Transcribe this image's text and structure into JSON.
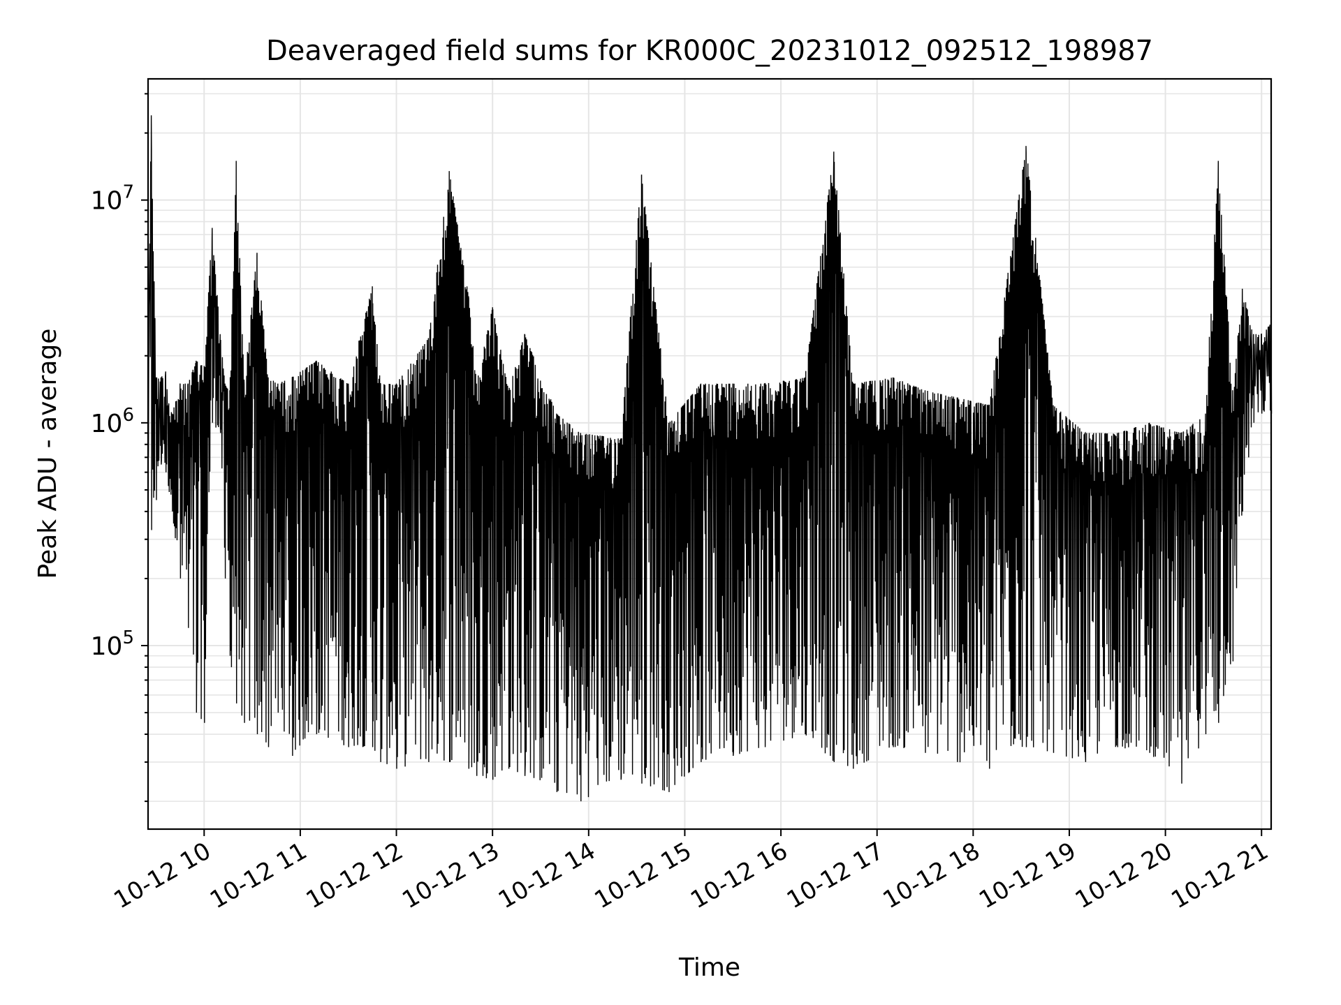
{
  "chart_data": {
    "type": "line",
    "title": "Deaveraged field sums for KR000C_20231012_092512_198987",
    "xlabel": "Time",
    "ylabel": "Peak ADU - average",
    "yscale": "log",
    "ylim": [
      15000,
      35000000
    ],
    "xlim": [
      "2023-10-12 09:25",
      "2023-10-12 21:06"
    ],
    "grid": true,
    "legend": "none",
    "line_color": "#000000",
    "x_ticks": [
      {
        "t": "2023-10-12 10:00",
        "label": "10-12 10"
      },
      {
        "t": "2023-10-12 11:00",
        "label": "10-12 11"
      },
      {
        "t": "2023-10-12 12:00",
        "label": "10-12 12"
      },
      {
        "t": "2023-10-12 13:00",
        "label": "10-12 13"
      },
      {
        "t": "2023-10-12 14:00",
        "label": "10-12 14"
      },
      {
        "t": "2023-10-12 15:00",
        "label": "10-12 15"
      },
      {
        "t": "2023-10-12 16:00",
        "label": "10-12 16"
      },
      {
        "t": "2023-10-12 17:00",
        "label": "10-12 17"
      },
      {
        "t": "2023-10-12 18:00",
        "label": "10-12 18"
      },
      {
        "t": "2023-10-12 19:00",
        "label": "10-12 19"
      },
      {
        "t": "2023-10-12 20:00",
        "label": "10-12 20"
      },
      {
        "t": "2023-10-12 21:00",
        "label": "10-12 21"
      }
    ],
    "y_ticks": [
      {
        "value": 100000,
        "base": "10",
        "exp": "5"
      },
      {
        "value": 1000000,
        "base": "10",
        "exp": "6"
      },
      {
        "value": 10000000,
        "base": "10",
        "exp": "7"
      }
    ],
    "series": [
      {
        "x": [
          "2023-10-12 09:25",
          "2023-10-12 09:27",
          "2023-10-12 09:30",
          "2023-10-12 09:33",
          "2023-10-12 09:36",
          "2023-10-12 09:40",
          "2023-10-12 09:45",
          "2023-10-12 09:50",
          "2023-10-12 09:55",
          "2023-10-12 10:00",
          "2023-10-12 10:05",
          "2023-10-12 10:10",
          "2023-10-12 10:13",
          "2023-10-12 10:16",
          "2023-10-12 10:20",
          "2023-10-12 10:25",
          "2023-10-12 10:33",
          "2023-10-12 10:40",
          "2023-10-12 10:46",
          "2023-10-12 10:55",
          "2023-10-12 11:10",
          "2023-10-12 11:30",
          "2023-10-12 11:45",
          "2023-10-12 11:50",
          "2023-10-12 12:00",
          "2023-10-12 12:20",
          "2023-10-12 12:33",
          "2023-10-12 12:45",
          "2023-10-12 12:50",
          "2023-10-12 13:00",
          "2023-10-12 13:10",
          "2023-10-12 13:20",
          "2023-10-12 13:40",
          "2023-10-12 13:55",
          "2023-10-12 14:20",
          "2023-10-12 14:33",
          "2023-10-12 14:50",
          "2023-10-12 15:10",
          "2023-10-12 15:30",
          "2023-10-12 15:50",
          "2023-10-12 16:15",
          "2023-10-12 16:33",
          "2023-10-12 16:45",
          "2023-10-12 17:10",
          "2023-10-12 17:30",
          "2023-10-12 17:50",
          "2023-10-12 18:10",
          "2023-10-12 18:33",
          "2023-10-12 18:50",
          "2023-10-12 19:10",
          "2023-10-12 19:30",
          "2023-10-12 19:50",
          "2023-10-12 20:10",
          "2023-10-12 20:25",
          "2023-10-12 20:33",
          "2023-10-12 20:42",
          "2023-10-12 20:48",
          "2023-10-12 20:55",
          "2023-10-12 21:00",
          "2023-10-12 21:06"
        ],
        "high": [
          2000000,
          24000000,
          1600000,
          1600000,
          1700000,
          1100000,
          1500000,
          1500000,
          1900000,
          1800000,
          7500000,
          2500000,
          1500000,
          1400000,
          15000000,
          1500000,
          5800000,
          1600000,
          1500000,
          1600000,
          1900000,
          1500000,
          4100000,
          1500000,
          1500000,
          2400000,
          13500000,
          3700000,
          1500000,
          3300000,
          1400000,
          2500000,
          1100000,
          900000,
          850000,
          13000000,
          1000000,
          1500000,
          1500000,
          1500000,
          1600000,
          16500000,
          1500000,
          1600000,
          1400000,
          1300000,
          1200000,
          17500000,
          1200000,
          900000,
          900000,
          1000000,
          900000,
          1100000,
          15000000,
          1400000,
          4000000,
          2500000,
          2500000,
          2800000
        ],
        "low": [
          700000,
          330000,
          450000,
          650000,
          600000,
          400000,
          200000,
          120000,
          50000,
          45000,
          1000000,
          900000,
          200000,
          90000,
          55000,
          45000,
          40000,
          35000,
          50000,
          32000,
          40000,
          35000,
          35000,
          30000,
          28000,
          30000,
          30000,
          28000,
          26000,
          25000,
          28000,
          26000,
          22000,
          20000,
          25000,
          24000,
          22000,
          30000,
          32000,
          35000,
          40000,
          30000,
          28000,
          35000,
          33000,
          30000,
          28000,
          35000,
          33000,
          30000,
          35000,
          33000,
          24000,
          40000,
          45000,
          85000,
          400000,
          1000000,
          1100000,
          1100000
        ]
      }
    ]
  }
}
